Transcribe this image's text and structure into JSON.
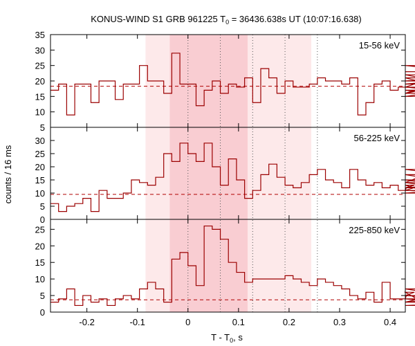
{
  "chart_data": {
    "type": "line",
    "title_main": "KONUS-WIND S1 GRB 961225 T",
    "title_sub": "0",
    "title_rest": " = 36436.638s UT (10:07:16.638)",
    "ylabel": "counts / 16 ms",
    "xlabel_main": "T - T",
    "xlabel_sub": "0",
    "xlabel_rest": ", s",
    "x_ticks": [
      "-0.2",
      "-0.1",
      "0",
      "0.1",
      "0.2",
      "0.3",
      "0.4"
    ],
    "xlim": [
      -0.272,
      0.43
    ],
    "bin_width": 0.016,
    "bin_start": -0.272,
    "shaded_regions": [
      {
        "x0": -0.084,
        "x1": 0.244,
        "color": "#fde9ea"
      },
      {
        "x0": -0.036,
        "x1": 0.118,
        "color": "#f9cdd2"
      }
    ],
    "dotted_lines": [
      0.0,
      0.064,
      0.128,
      0.192,
      0.256
    ],
    "panels": [
      {
        "name": "15-56 keV",
        "ylim": [
          5,
          35
        ],
        "yticks": [
          "5",
          "10",
          "15",
          "20",
          "25",
          "30",
          "35"
        ],
        "background": 18.3,
        "values": [
          17,
          19,
          9,
          19,
          19,
          13,
          20,
          20,
          14,
          19,
          19,
          25,
          20,
          20,
          16,
          29,
          19,
          19,
          12,
          17,
          20,
          16,
          19,
          18,
          21,
          13,
          24,
          21,
          16,
          20,
          18,
          18,
          19,
          21,
          20,
          20,
          19,
          21,
          9,
          13,
          19,
          20,
          17,
          18,
          18,
          19,
          19,
          19,
          20,
          21,
          17,
          15,
          18,
          16,
          25,
          22,
          16,
          23
        ]
      },
      {
        "name": "56-225 keV",
        "ylim": [
          0,
          35
        ],
        "yticks": [
          "0",
          "5",
          "10",
          "15",
          "20",
          "25",
          "30"
        ],
        "background": 9.5,
        "values": [
          6,
          3,
          5,
          6,
          8,
          3,
          11,
          8,
          8,
          10,
          15,
          14,
          13,
          16,
          25,
          22,
          29,
          25,
          22,
          29,
          20,
          13,
          23,
          15,
          8,
          11,
          17,
          21,
          16,
          13,
          12,
          14,
          17,
          19,
          15,
          14,
          12,
          19,
          15,
          13,
          14,
          12,
          13,
          11,
          12,
          13,
          11,
          14,
          19,
          17,
          14,
          11,
          11,
          10,
          12,
          15,
          10,
          12
        ]
      },
      {
        "name": "225-850 keV",
        "ylim": [
          0,
          28
        ],
        "yticks": [
          "0",
          "5",
          "10",
          "15",
          "20",
          "25"
        ],
        "background": 3.7,
        "values": [
          3,
          4,
          7,
          2,
          5,
          3,
          4,
          2,
          4,
          5,
          4,
          7,
          9,
          7,
          3,
          16,
          18,
          14,
          8,
          26,
          25,
          22,
          15,
          12,
          9,
          10,
          10,
          10,
          10,
          11,
          10,
          9,
          8,
          10,
          9,
          8,
          7,
          5,
          4,
          6,
          3,
          9,
          4,
          4,
          5,
          6,
          3,
          3,
          3,
          3,
          3,
          7,
          4,
          2,
          3,
          5,
          3,
          4
        ]
      }
    ]
  }
}
